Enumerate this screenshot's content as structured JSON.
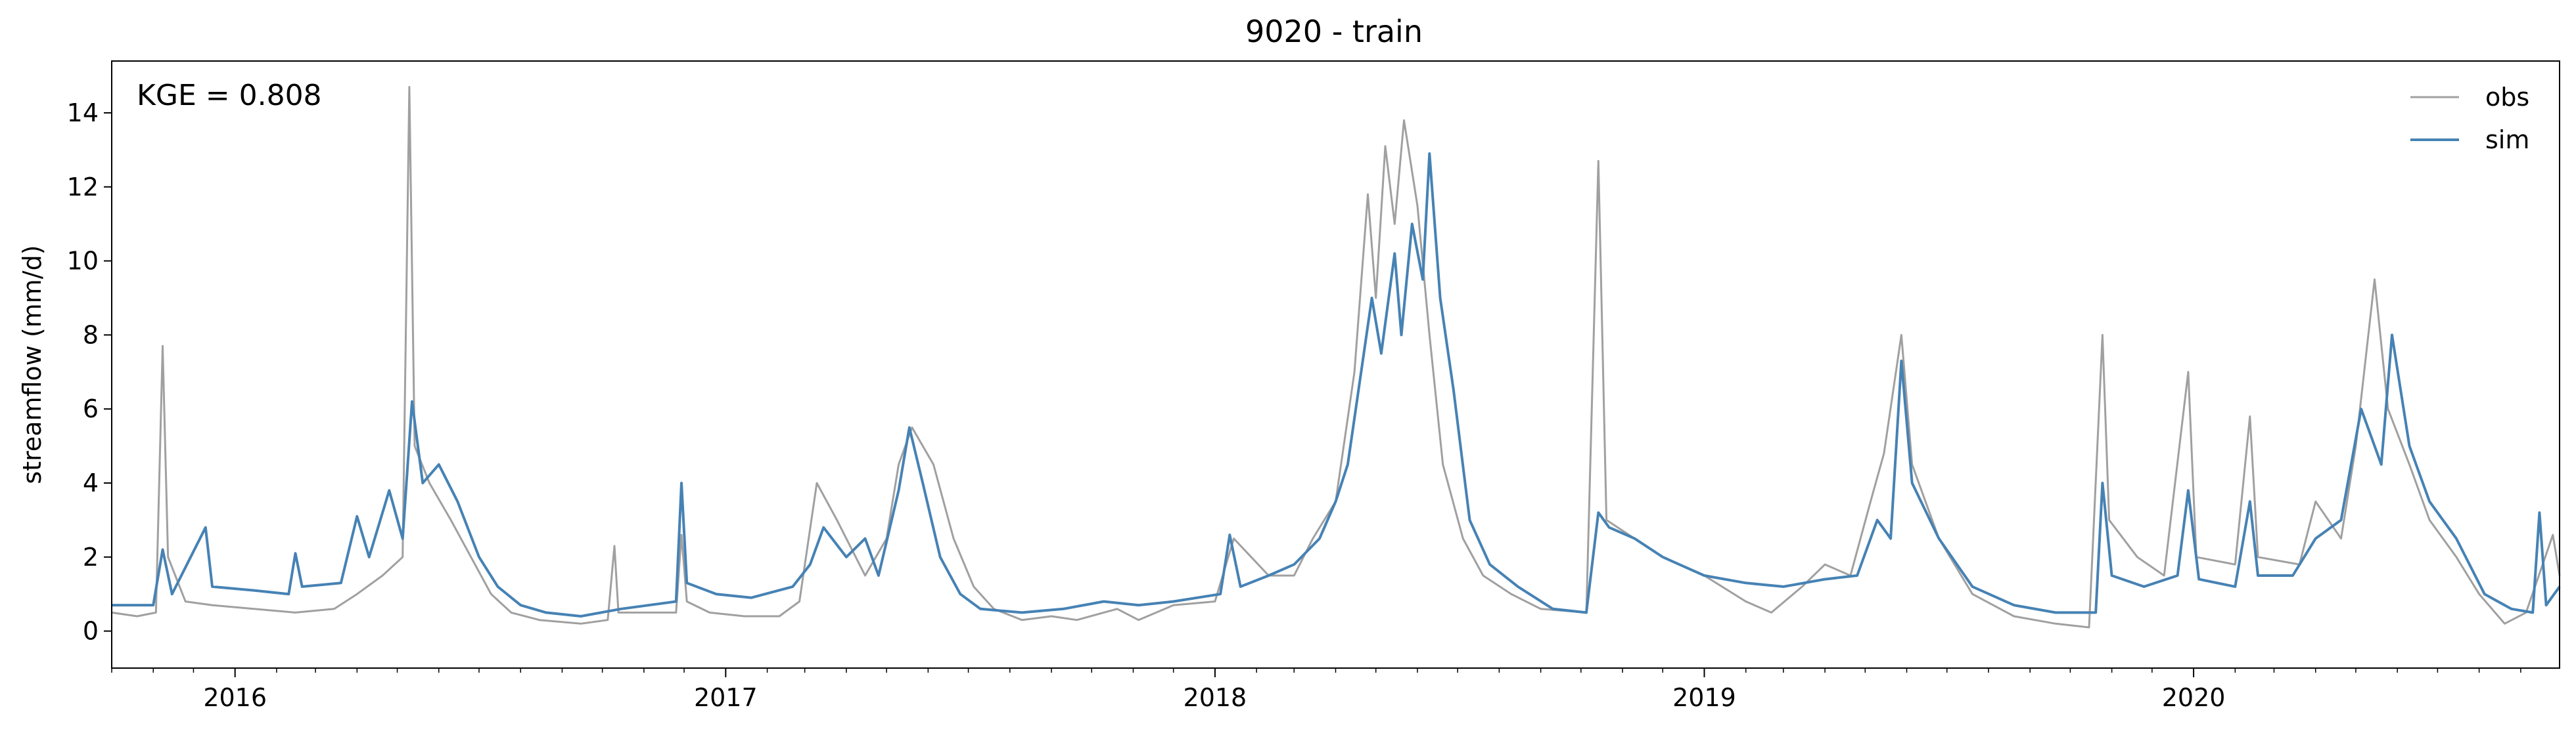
{
  "chart_data": {
    "type": "line",
    "title": "9020 - train",
    "xlabel": "",
    "ylabel": "streamflow (mm/d)",
    "annotation": "KGE = 0.808",
    "x_range": [
      "2015-10-01",
      "2020-09-30"
    ],
    "ylim": [
      -1,
      15.4
    ],
    "y_ticks": [
      0,
      2,
      4,
      6,
      8,
      10,
      12,
      14
    ],
    "x_ticks": [
      {
        "label": "2016",
        "date": "2016-01-01"
      },
      {
        "label": "2017",
        "date": "2017-01-01"
      },
      {
        "label": "2018",
        "date": "2018-01-01"
      },
      {
        "label": "2019",
        "date": "2019-01-01"
      },
      {
        "label": "2020",
        "date": "2020-01-01"
      }
    ],
    "grid": false,
    "legend_position": "top-right",
    "series": [
      {
        "name": "obs",
        "color": "#a0a0a0",
        "points": [
          [
            "2015-10-01",
            0.5
          ],
          [
            "2015-10-20",
            0.4
          ],
          [
            "2015-11-03",
            0.5
          ],
          [
            "2015-11-08",
            7.7
          ],
          [
            "2015-11-12",
            2.0
          ],
          [
            "2015-11-25",
            0.8
          ],
          [
            "2015-12-15",
            0.7
          ],
          [
            "2016-01-15",
            0.6
          ],
          [
            "2016-02-15",
            0.5
          ],
          [
            "2016-03-15",
            0.6
          ],
          [
            "2016-04-01",
            1.0
          ],
          [
            "2016-04-20",
            1.5
          ],
          [
            "2016-05-05",
            2.0
          ],
          [
            "2016-05-10",
            14.7
          ],
          [
            "2016-05-14",
            5.0
          ],
          [
            "2016-05-25",
            4.0
          ],
          [
            "2016-06-10",
            3.0
          ],
          [
            "2016-06-25",
            2.0
          ],
          [
            "2016-07-10",
            1.0
          ],
          [
            "2016-07-25",
            0.5
          ],
          [
            "2016-08-15",
            0.3
          ],
          [
            "2016-09-15",
            0.2
          ],
          [
            "2016-10-05",
            0.3
          ],
          [
            "2016-10-10",
            2.3
          ],
          [
            "2016-10-13",
            0.5
          ],
          [
            "2016-11-05",
            0.5
          ],
          [
            "2016-11-25",
            0.5
          ],
          [
            "2016-11-29",
            2.6
          ],
          [
            "2016-12-03",
            0.8
          ],
          [
            "2016-12-20",
            0.5
          ],
          [
            "2017-01-15",
            0.4
          ],
          [
            "2017-02-10",
            0.4
          ],
          [
            "2017-02-25",
            0.8
          ],
          [
            "2017-03-10",
            4.0
          ],
          [
            "2017-03-25",
            3.0
          ],
          [
            "2017-04-15",
            1.5
          ],
          [
            "2017-05-01",
            2.5
          ],
          [
            "2017-05-10",
            4.5
          ],
          [
            "2017-05-20",
            5.5
          ],
          [
            "2017-06-05",
            4.5
          ],
          [
            "2017-06-20",
            2.5
          ],
          [
            "2017-07-05",
            1.2
          ],
          [
            "2017-07-20",
            0.6
          ],
          [
            "2017-08-10",
            0.3
          ],
          [
            "2017-09-01",
            0.4
          ],
          [
            "2017-09-20",
            0.3
          ],
          [
            "2017-10-20",
            0.6
          ],
          [
            "2017-11-05",
            0.3
          ],
          [
            "2017-12-01",
            0.7
          ],
          [
            "2018-01-01",
            0.8
          ],
          [
            "2018-01-15",
            2.5
          ],
          [
            "2018-02-10",
            1.5
          ],
          [
            "2018-03-01",
            1.5
          ],
          [
            "2018-03-15",
            2.5
          ],
          [
            "2018-04-01",
            3.5
          ],
          [
            "2018-04-15",
            7.0
          ],
          [
            "2018-04-25",
            11.8
          ],
          [
            "2018-05-01",
            9.0
          ],
          [
            "2018-05-08",
            13.1
          ],
          [
            "2018-05-15",
            11.0
          ],
          [
            "2018-05-22",
            13.8
          ],
          [
            "2018-06-01",
            11.5
          ],
          [
            "2018-06-10",
            8.0
          ],
          [
            "2018-06-20",
            4.5
          ],
          [
            "2018-07-05",
            2.5
          ],
          [
            "2018-07-20",
            1.5
          ],
          [
            "2018-08-10",
            1.0
          ],
          [
            "2018-09-01",
            0.6
          ],
          [
            "2018-10-05",
            0.5
          ],
          [
            "2018-10-14",
            12.7
          ],
          [
            "2018-10-20",
            3.0
          ],
          [
            "2018-11-10",
            2.5
          ],
          [
            "2018-12-01",
            2.0
          ],
          [
            "2019-01-01",
            1.5
          ],
          [
            "2019-02-01",
            0.8
          ],
          [
            "2019-02-20",
            0.5
          ],
          [
            "2019-03-15",
            1.2
          ],
          [
            "2019-04-01",
            1.8
          ],
          [
            "2019-04-20",
            1.5
          ],
          [
            "2019-05-05",
            3.5
          ],
          [
            "2019-05-15",
            4.8
          ],
          [
            "2019-05-28",
            8.0
          ],
          [
            "2019-06-05",
            4.5
          ],
          [
            "2019-06-25",
            2.5
          ],
          [
            "2019-07-20",
            1.0
          ],
          [
            "2019-08-20",
            0.4
          ],
          [
            "2019-09-20",
            0.2
          ],
          [
            "2019-10-15",
            0.1
          ],
          [
            "2019-10-25",
            8.0
          ],
          [
            "2019-10-30",
            3.0
          ],
          [
            "2019-11-20",
            2.0
          ],
          [
            "2019-12-10",
            1.5
          ],
          [
            "2019-12-28",
            7.0
          ],
          [
            "2020-01-03",
            2.0
          ],
          [
            "2020-02-01",
            1.8
          ],
          [
            "2020-02-12",
            5.8
          ],
          [
            "2020-02-18",
            2.0
          ],
          [
            "2020-03-20",
            1.8
          ],
          [
            "2020-04-01",
            3.5
          ],
          [
            "2020-04-20",
            2.5
          ],
          [
            "2020-05-01",
            5.0
          ],
          [
            "2020-05-15",
            9.5
          ],
          [
            "2020-05-25",
            6.0
          ],
          [
            "2020-06-10",
            4.5
          ],
          [
            "2020-06-25",
            3.0
          ],
          [
            "2020-07-15",
            2.0
          ],
          [
            "2020-08-01",
            1.0
          ],
          [
            "2020-08-20",
            0.2
          ],
          [
            "2020-09-05",
            0.5
          ],
          [
            "2020-09-25",
            2.6
          ],
          [
            "2020-09-30",
            1.5
          ]
        ]
      },
      {
        "name": "sim",
        "color": "#4682b4",
        "points": [
          [
            "2015-10-01",
            0.7
          ],
          [
            "2015-11-01",
            0.7
          ],
          [
            "2015-11-08",
            2.2
          ],
          [
            "2015-11-15",
            1.0
          ],
          [
            "2015-12-10",
            2.8
          ],
          [
            "2015-12-15",
            1.2
          ],
          [
            "2016-01-15",
            1.1
          ],
          [
            "2016-02-10",
            1.0
          ],
          [
            "2016-02-15",
            2.1
          ],
          [
            "2016-02-20",
            1.2
          ],
          [
            "2016-03-20",
            1.3
          ],
          [
            "2016-04-01",
            3.1
          ],
          [
            "2016-04-10",
            2.0
          ],
          [
            "2016-04-25",
            3.8
          ],
          [
            "2016-05-05",
            2.5
          ],
          [
            "2016-05-12",
            6.2
          ],
          [
            "2016-05-20",
            4.0
          ],
          [
            "2016-06-01",
            4.5
          ],
          [
            "2016-06-15",
            3.5
          ],
          [
            "2016-07-01",
            2.0
          ],
          [
            "2016-07-15",
            1.2
          ],
          [
            "2016-08-01",
            0.7
          ],
          [
            "2016-08-20",
            0.5
          ],
          [
            "2016-09-15",
            0.4
          ],
          [
            "2016-10-15",
            0.6
          ],
          [
            "2016-11-25",
            0.8
          ],
          [
            "2016-11-29",
            4.0
          ],
          [
            "2016-12-03",
            1.3
          ],
          [
            "2016-12-25",
            1.0
          ],
          [
            "2017-01-20",
            0.9
          ],
          [
            "2017-02-20",
            1.2
          ],
          [
            "2017-03-05",
            1.8
          ],
          [
            "2017-03-15",
            2.8
          ],
          [
            "2017-04-01",
            2.0
          ],
          [
            "2017-04-15",
            2.5
          ],
          [
            "2017-04-25",
            1.5
          ],
          [
            "2017-05-10",
            3.8
          ],
          [
            "2017-05-18",
            5.5
          ],
          [
            "2017-05-28",
            4.0
          ],
          [
            "2017-06-10",
            2.0
          ],
          [
            "2017-06-25",
            1.0
          ],
          [
            "2017-07-10",
            0.6
          ],
          [
            "2017-08-10",
            0.5
          ],
          [
            "2017-09-10",
            0.6
          ],
          [
            "2017-10-10",
            0.8
          ],
          [
            "2017-11-05",
            0.7
          ],
          [
            "2017-12-01",
            0.8
          ],
          [
            "2018-01-05",
            1.0
          ],
          [
            "2018-01-12",
            2.6
          ],
          [
            "2018-01-20",
            1.2
          ],
          [
            "2018-02-10",
            1.5
          ],
          [
            "2018-03-01",
            1.8
          ],
          [
            "2018-03-20",
            2.5
          ],
          [
            "2018-04-01",
            3.5
          ],
          [
            "2018-04-10",
            4.5
          ],
          [
            "2018-04-20",
            7.0
          ],
          [
            "2018-04-28",
            9.0
          ],
          [
            "2018-05-05",
            7.5
          ],
          [
            "2018-05-15",
            10.2
          ],
          [
            "2018-05-20",
            8.0
          ],
          [
            "2018-05-28",
            11.0
          ],
          [
            "2018-06-05",
            9.5
          ],
          [
            "2018-06-10",
            12.9
          ],
          [
            "2018-06-18",
            9.0
          ],
          [
            "2018-06-28",
            6.5
          ],
          [
            "2018-07-10",
            3.0
          ],
          [
            "2018-07-25",
            1.8
          ],
          [
            "2018-08-15",
            1.2
          ],
          [
            "2018-09-10",
            0.6
          ],
          [
            "2018-10-05",
            0.5
          ],
          [
            "2018-10-14",
            3.2
          ],
          [
            "2018-10-22",
            2.8
          ],
          [
            "2018-11-10",
            2.5
          ],
          [
            "2018-12-01",
            2.0
          ],
          [
            "2019-01-01",
            1.5
          ],
          [
            "2019-02-01",
            1.3
          ],
          [
            "2019-03-01",
            1.2
          ],
          [
            "2019-04-01",
            1.4
          ],
          [
            "2019-04-25",
            1.5
          ],
          [
            "2019-05-10",
            3.0
          ],
          [
            "2019-05-20",
            2.5
          ],
          [
            "2019-05-28",
            7.3
          ],
          [
            "2019-06-05",
            4.0
          ],
          [
            "2019-06-25",
            2.5
          ],
          [
            "2019-07-20",
            1.2
          ],
          [
            "2019-08-20",
            0.7
          ],
          [
            "2019-09-20",
            0.5
          ],
          [
            "2019-10-20",
            0.5
          ],
          [
            "2019-10-25",
            4.0
          ],
          [
            "2019-11-01",
            1.5
          ],
          [
            "2019-11-25",
            1.2
          ],
          [
            "2019-12-20",
            1.5
          ],
          [
            "2019-12-28",
            3.8
          ],
          [
            "2020-01-05",
            1.4
          ],
          [
            "2020-02-01",
            1.2
          ],
          [
            "2020-02-12",
            3.5
          ],
          [
            "2020-02-18",
            1.5
          ],
          [
            "2020-03-15",
            1.5
          ],
          [
            "2020-04-01",
            2.5
          ],
          [
            "2020-04-20",
            3.0
          ],
          [
            "2020-05-05",
            6.0
          ],
          [
            "2020-05-20",
            4.5
          ],
          [
            "2020-05-28",
            8.0
          ],
          [
            "2020-06-10",
            5.0
          ],
          [
            "2020-06-25",
            3.5
          ],
          [
            "2020-07-15",
            2.5
          ],
          [
            "2020-08-05",
            1.0
          ],
          [
            "2020-08-25",
            0.6
          ],
          [
            "2020-09-10",
            0.5
          ],
          [
            "2020-09-15",
            3.2
          ],
          [
            "2020-09-20",
            0.7
          ],
          [
            "2020-09-30",
            1.2
          ]
        ]
      }
    ]
  }
}
